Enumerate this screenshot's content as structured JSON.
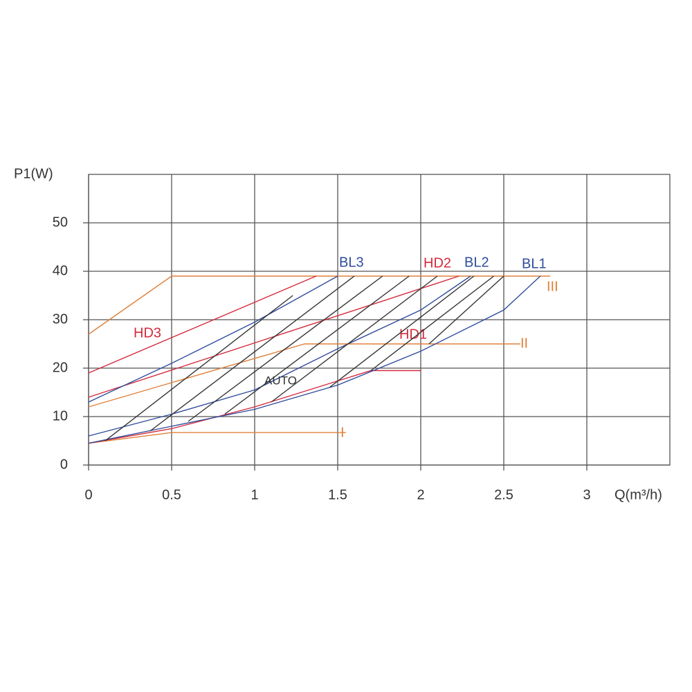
{
  "chart_data": {
    "type": "line",
    "x_label": "Q(m³/h)",
    "y_label": "P1(W)",
    "xlim": [
      0,
      3.5
    ],
    "xticks": [
      0,
      0.5,
      1,
      1.5,
      2,
      2.5,
      3
    ],
    "ylim": [
      0,
      60
    ],
    "yticks": [
      0,
      10,
      20,
      30,
      40,
      50
    ],
    "grid": true,
    "series": [
      {
        "name": "III",
        "color": "#e0803a",
        "x": [
          0,
          0.5,
          2.78
        ],
        "values": [
          27,
          39,
          39
        ]
      },
      {
        "name": "II",
        "color": "#e0803a",
        "x": [
          0,
          1.3,
          2.6
        ],
        "values": [
          12,
          25,
          25
        ]
      },
      {
        "name": "I",
        "color": "#e0803a",
        "x": [
          0,
          0.5,
          1.55
        ],
        "values": [
          4.5,
          6.7,
          6.7
        ]
      },
      {
        "name": "HD3",
        "color": "#d42a3c",
        "x": [
          0,
          1.37
        ],
        "values": [
          19,
          39
        ]
      },
      {
        "name": "HD2",
        "color": "#d42a3c",
        "x": [
          0,
          2.23
        ],
        "values": [
          14,
          39
        ]
      },
      {
        "name": "HD1",
        "color": "#d42a3c",
        "x": [
          0,
          0.5,
          1.0,
          1.7,
          2.0
        ],
        "values": [
          4.5,
          7.5,
          12,
          19.5,
          19.5
        ]
      },
      {
        "name": "BL3",
        "color": "#2f4d9c",
        "x": [
          0,
          0.5,
          1.0,
          1.5
        ],
        "values": [
          13,
          21,
          29.5,
          39
        ]
      },
      {
        "name": "BL2",
        "color": "#2f4d9c",
        "x": [
          0,
          0.5,
          1.0,
          1.5,
          2.0,
          2.3
        ],
        "values": [
          6,
          10.5,
          15.5,
          24,
          32,
          39
        ]
      },
      {
        "name": "BL1",
        "color": "#2f4d9c",
        "x": [
          0,
          0.5,
          1.0,
          1.5,
          2.0,
          2.5,
          2.72
        ],
        "values": [
          4.5,
          8,
          11.5,
          16.5,
          23.5,
          32,
          39
        ]
      },
      {
        "name": "AUTO",
        "color": "#333333",
        "x": [
          0.1,
          1.23,
          null,
          0.37,
          1.6,
          null,
          0.6,
          1.77,
          null,
          0.82,
          1.93,
          null,
          1.1,
          2.1,
          null,
          1.45,
          2.32,
          null,
          1.7,
          2.44,
          null,
          2.05,
          2.5
        ],
        "values": [
          5,
          35,
          null,
          7,
          39,
          null,
          9,
          39,
          null,
          10.5,
          39,
          null,
          13,
          39,
          null,
          16,
          39,
          null,
          19.5,
          39,
          null,
          25,
          39
        ]
      }
    ]
  }
}
